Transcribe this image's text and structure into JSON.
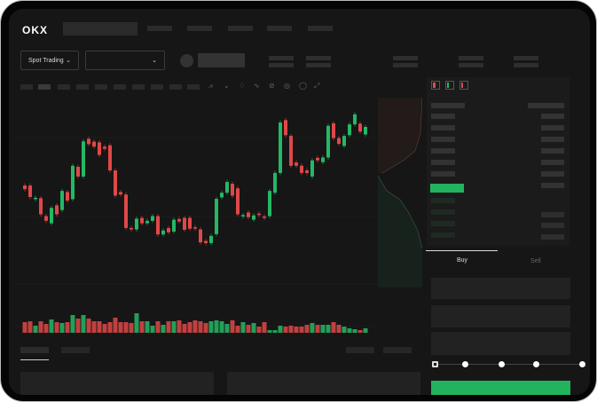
{
  "header": {
    "logo": "OKX"
  },
  "toolbar": {
    "market_select": "Spot Trading"
  },
  "trade_form": {
    "buy_tab": "Buy",
    "sell_tab": "Sell",
    "active_tab": "Buy",
    "buy_button_color": "#22b35e"
  },
  "colors": {
    "up": "#25b864",
    "down": "#e04848",
    "background": "#161616"
  },
  "chart_data": {
    "type": "candlestick",
    "candles": [
      [
        200,
        190
      ],
      [
        200,
        168
      ],
      [
        162,
        166
      ],
      [
        165,
        120
      ],
      [
        115,
        102
      ],
      [
        95,
        138
      ],
      [
        145,
        120
      ],
      [
        132,
        185
      ],
      [
        182,
        158
      ],
      [
        162,
        255
      ],
      [
        252,
        225
      ],
      [
        225,
        323
      ],
      [
        330,
        315
      ],
      [
        322,
        308
      ],
      [
        320,
        285
      ],
      [
        308,
        302
      ],
      [
        312,
        242
      ],
      [
        242,
        172
      ],
      [
        182,
        175
      ],
      [
        175,
        82
      ],
      [
        82,
        78
      ],
      [
        78,
        108
      ],
      [
        110,
        95
      ],
      [
        95,
        102
      ],
      [
        102,
        115
      ],
      [
        115,
        64
      ],
      [
        64,
        75
      ],
      [
        82,
        70
      ],
      [
        72,
        105
      ],
      [
        107,
        100
      ],
      [
        110,
        77
      ],
      [
        110,
        80
      ],
      [
        84,
        80
      ],
      [
        78,
        42
      ],
      [
        46,
        40
      ],
      [
        40,
        60
      ],
      [
        65,
        163
      ],
      [
        167,
        180
      ],
      [
        180,
        210
      ],
      [
        205,
        172
      ],
      [
        192,
        120
      ],
      [
        114,
        118
      ],
      [
        125,
        112
      ],
      [
        105,
        117
      ],
      [
        122,
        118
      ],
      [
        114,
        110
      ],
      [
        115,
        185
      ],
      [
        180,
        235
      ],
      [
        235,
        375
      ],
      [
        382,
        340
      ],
      [
        338,
        255
      ],
      [
        264,
        255
      ],
      [
        255,
        235
      ],
      [
        242,
        235
      ],
      [
        225,
        270
      ],
      [
        277,
        270
      ],
      [
        265,
        278
      ],
      [
        278,
        366
      ],
      [
        373,
        332
      ],
      [
        332,
        316
      ],
      [
        310,
        338
      ],
      [
        340,
        370
      ],
      [
        370,
        398
      ],
      [
        372,
        350
      ],
      [
        342,
        363
      ]
    ],
    "volume": [
      12,
      13,
      8,
      13,
      10,
      15,
      12,
      11,
      12,
      20,
      16,
      20,
      16,
      13,
      13,
      10,
      12,
      17,
      12,
      12,
      11,
      22,
      13,
      13,
      8,
      13,
      9,
      13,
      13,
      14,
      10,
      12,
      14,
      13,
      11,
      13,
      14,
      13,
      10,
      14,
      8,
      12,
      9,
      11,
      7,
      12,
      3,
      3,
      8,
      7,
      8,
      7,
      7,
      9,
      11,
      9,
      9,
      9,
      12,
      9,
      7,
      5,
      4,
      3,
      5
    ]
  }
}
